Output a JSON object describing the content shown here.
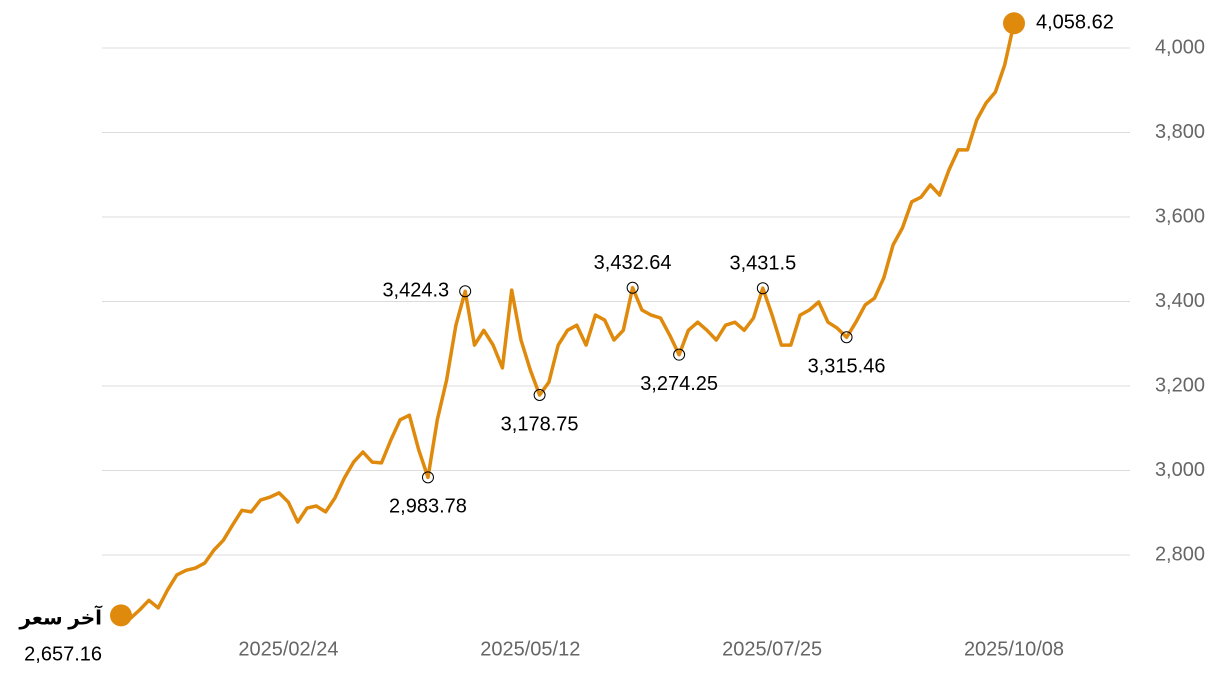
{
  "chart_data": {
    "type": "line",
    "annotation": "آخر سعر",
    "color": "#df8a0c",
    "categories": [
      null,
      null,
      null,
      null,
      null,
      null,
      null,
      null,
      null,
      null,
      null,
      null,
      null,
      null,
      null,
      null,
      null,
      null,
      "2025/02/24",
      null,
      null,
      null,
      null,
      null,
      null,
      null,
      null,
      null,
      null,
      null,
      null,
      null,
      null,
      null,
      null,
      null,
      null,
      null,
      null,
      null,
      null,
      null,
      null,
      null,
      "2025/05/12",
      null,
      null,
      null,
      null,
      null,
      null,
      null,
      null,
      null,
      null,
      null,
      null,
      null,
      null,
      null,
      null,
      null,
      null,
      null,
      null,
      null,
      null,
      null,
      null,
      null,
      "2025/07/25",
      null,
      null,
      null,
      null,
      null,
      null,
      null,
      null,
      null,
      null,
      null,
      null,
      null,
      null,
      null,
      null,
      null,
      null,
      null,
      null,
      null,
      null,
      null,
      null,
      null,
      "2025/10/08"
    ],
    "values": [
      2657.16,
      2650,
      2670,
      2693,
      2675,
      2717,
      2753,
      2764,
      2769,
      2781,
      2812,
      2835,
      2871,
      2906,
      2902,
      2930,
      2937,
      2947,
      2925,
      2878,
      2911,
      2916,
      2902,
      2935,
      2982,
      3020,
      3044,
      3020,
      3018,
      3072,
      3120,
      3131,
      3049,
      2983.78,
      3120,
      3214,
      3344,
      3424.3,
      3297,
      3332,
      3297,
      3243,
      3427,
      3309,
      3238,
      3178.75,
      3209,
      3297,
      3332,
      3344,
      3297,
      3368,
      3356,
      3309,
      3332,
      3432.64,
      3380,
      3368,
      3361,
      3320,
      3274.25,
      3332,
      3351,
      3332,
      3309,
      3344,
      3351,
      3332,
      3361,
      3431.5,
      3368,
      3297,
      3297,
      3368,
      3380,
      3399,
      3351,
      3337,
      3315.46,
      3351,
      3392,
      3408,
      3456,
      3534,
      3574,
      3636,
      3647,
      3676,
      3652,
      3711,
      3759,
      3759,
      3830,
      3870,
      3896,
      3960,
      4058.62
    ],
    "value_labels": [
      "2,657.16",
      null,
      null,
      null,
      null,
      null,
      null,
      null,
      null,
      null,
      null,
      null,
      null,
      null,
      null,
      null,
      null,
      null,
      null,
      null,
      null,
      null,
      null,
      null,
      null,
      null,
      null,
      null,
      null,
      null,
      null,
      null,
      null,
      "2,983.78",
      null,
      null,
      null,
      "3,424.3",
      null,
      null,
      null,
      null,
      null,
      null,
      null,
      "3,178.75",
      null,
      null,
      null,
      null,
      null,
      null,
      null,
      null,
      null,
      "3,432.64",
      null,
      null,
      null,
      null,
      "3,274.25",
      null,
      null,
      null,
      null,
      null,
      null,
      null,
      null,
      "3,431.5",
      null,
      null,
      null,
      null,
      null,
      null,
      null,
      null,
      "3,315.46",
      null,
      null,
      null,
      null,
      null,
      null,
      null,
      null,
      null,
      null,
      null,
      null,
      null,
      null,
      null,
      null,
      null,
      "4,058.62"
    ],
    "ylim": [
      2580,
      4090
    ],
    "yticks": [
      {
        "value": 2800,
        "label": "2,800"
      },
      {
        "value": 3000,
        "label": "3,000"
      },
      {
        "value": 3200,
        "label": "3,200"
      },
      {
        "value": 3400,
        "label": "3,400"
      },
      {
        "value": 3600,
        "label": "3,600"
      },
      {
        "value": 3800,
        "label": "3,800"
      },
      {
        "value": 4000,
        "label": "4,000"
      }
    ],
    "grid": true
  }
}
